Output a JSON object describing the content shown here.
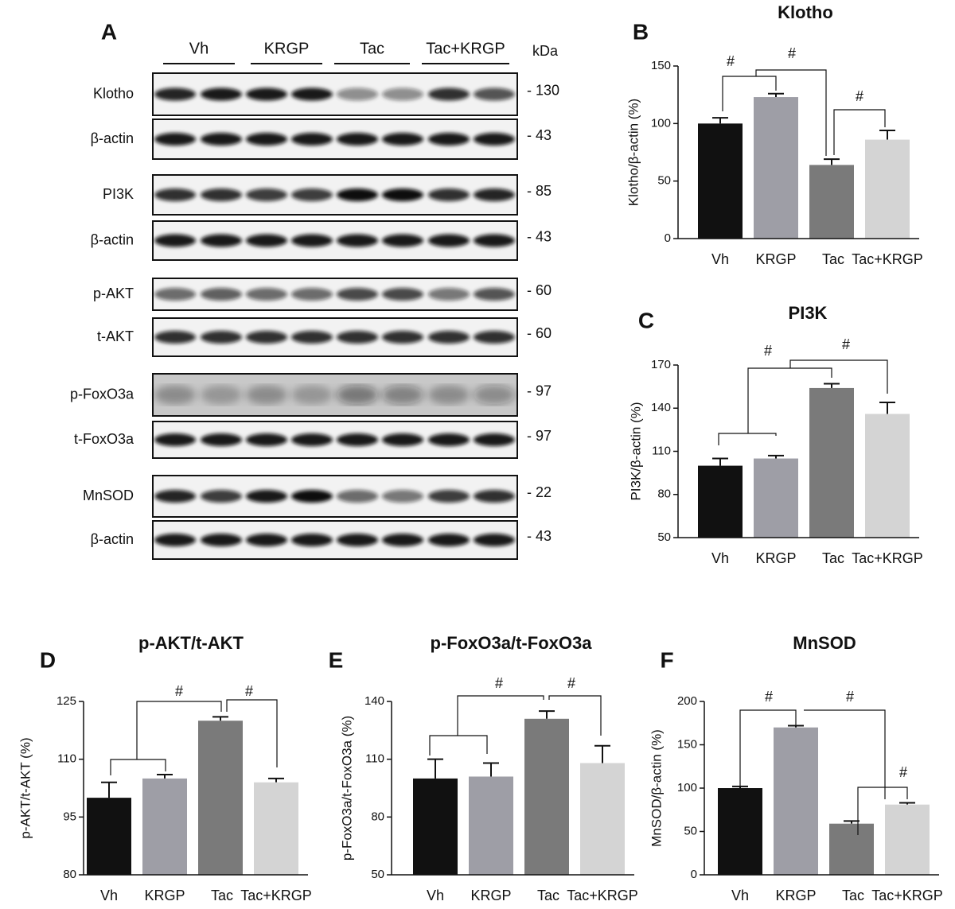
{
  "blot": {
    "panel": "A",
    "groups": [
      "Vh",
      "KRGP",
      "Tac",
      "Tac+KRGP"
    ],
    "unit": "kDa",
    "rows": [
      {
        "label": "Klotho",
        "kda": "- 130"
      },
      {
        "label": "β-actin",
        "kda": "- 43"
      },
      {
        "label": "PI3K",
        "kda": "- 85"
      },
      {
        "label": "β-actin",
        "kda": "- 43"
      },
      {
        "label": "p-AKT",
        "kda": "- 60"
      },
      {
        "label": "t-AKT",
        "kda": "- 60"
      },
      {
        "label": "p-FoxO3a",
        "kda": "- 97"
      },
      {
        "label": "t-FoxO3a",
        "kda": "- 97"
      },
      {
        "label": "MnSOD",
        "kda": "- 22"
      },
      {
        "label": "β-actin",
        "kda": "- 43"
      }
    ]
  },
  "chart_data": [
    {
      "type": "bar",
      "panel": "B",
      "title": "Klotho",
      "ylabel": "Klotho/β-actin (%)",
      "categories": [
        "Vh",
        "KRGP",
        "Tac",
        "Tac+KRGP"
      ],
      "values": [
        100,
        123,
        64,
        86
      ],
      "errors": [
        5,
        3,
        5,
        8
      ],
      "colors": [
        "#111111",
        "#9e9ea6",
        "#7a7a7a",
        "#d4d4d4"
      ],
      "ylim": [
        0,
        150
      ],
      "yticks": [
        0,
        50,
        100,
        150
      ],
      "annotations": [
        "#",
        "#",
        "#"
      ]
    },
    {
      "type": "bar",
      "panel": "C",
      "title": "PI3K",
      "ylabel": "PI3K/β-actin (%)",
      "categories": [
        "Vh",
        "KRGP",
        "Tac",
        "Tac+KRGP"
      ],
      "values": [
        100,
        105,
        154,
        136
      ],
      "errors": [
        5,
        2,
        3,
        8
      ],
      "colors": [
        "#111111",
        "#9e9ea6",
        "#7a7a7a",
        "#d4d4d4"
      ],
      "ylim": [
        50,
        170
      ],
      "yticks": [
        50,
        80,
        110,
        140,
        170
      ],
      "annotations": [
        "#",
        "#"
      ]
    },
    {
      "type": "bar",
      "panel": "D",
      "title": "p-AKT/t-AKT",
      "ylabel": "p-AKT/t-AKT (%)",
      "categories": [
        "Vh",
        "KRGP",
        "Tac",
        "Tac+KRGP"
      ],
      "values": [
        100,
        105,
        120,
        104
      ],
      "errors": [
        4,
        1,
        1,
        1
      ],
      "colors": [
        "#111111",
        "#9e9ea6",
        "#7a7a7a",
        "#d4d4d4"
      ],
      "ylim": [
        80,
        125
      ],
      "yticks": [
        80,
        95,
        110,
        125
      ],
      "annotations": [
        "#",
        "#"
      ]
    },
    {
      "type": "bar",
      "panel": "E",
      "title": "p-FoxO3a/t-FoxO3a",
      "ylabel": "p-FoxO3a/t-FoxO3a (%)",
      "categories": [
        "Vh",
        "KRGP",
        "Tac",
        "Tac+KRGP"
      ],
      "values": [
        100,
        101,
        131,
        108
      ],
      "errors": [
        10,
        7,
        4,
        9
      ],
      "colors": [
        "#111111",
        "#9e9ea6",
        "#7a7a7a",
        "#d4d4d4"
      ],
      "ylim": [
        50,
        140
      ],
      "yticks": [
        50,
        80,
        110,
        140
      ],
      "annotations": [
        "#",
        "#"
      ]
    },
    {
      "type": "bar",
      "panel": "F",
      "title": "MnSOD",
      "ylabel": "MnSOD/β-actin (%)",
      "categories": [
        "Vh",
        "KRGP",
        "Tac",
        "Tac+KRGP"
      ],
      "values": [
        100,
        170,
        59,
        81
      ],
      "errors": [
        2,
        2,
        3,
        2
      ],
      "colors": [
        "#111111",
        "#9e9ea6",
        "#7a7a7a",
        "#d4d4d4"
      ],
      "ylim": [
        0,
        200
      ],
      "yticks": [
        0,
        50,
        100,
        150,
        200
      ],
      "annotations": [
        "#",
        "#",
        "#"
      ]
    }
  ]
}
